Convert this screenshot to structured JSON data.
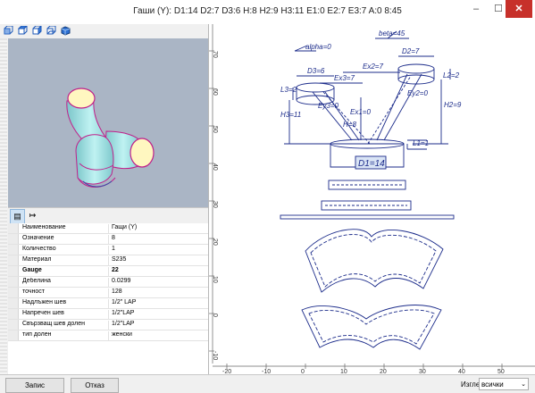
{
  "window": {
    "title": "Гаши (Y): D1:14 D2:7 D3:6 H:8 H2:9 H3:11 E1:0 E2:7 E3:7 A:0 8:45",
    "minimize_glyph": "–",
    "maximize_glyph": "☐",
    "close_glyph": "✕"
  },
  "view_toolbar": {
    "icons": [
      "view-front-icon",
      "view-top-icon",
      "view-side-icon",
      "view-back-icon",
      "view-3d-icon"
    ]
  },
  "colors": {
    "model_body": "#a4e6e8",
    "model_edge": "#c0208a",
    "model_opening": "#fff7c0",
    "drawing_line": "#1b2b8a",
    "ruler_text": "#333333"
  },
  "properties_tabs": [
    "properties-tab",
    "dimensions-tab"
  ],
  "properties": [
    {
      "key": "Наименование",
      "value": "Гащи (Y)",
      "bold": false
    },
    {
      "key": "Означение",
      "value": "8",
      "bold": false
    },
    {
      "key": "Количество",
      "value": "1",
      "bold": false
    },
    {
      "key": "Материал",
      "value": "S235",
      "bold": false
    },
    {
      "key": "Gauge",
      "value": "22",
      "bold": true
    },
    {
      "key": "Дебелина",
      "value": "0.0299",
      "bold": false
    },
    {
      "key": "точност",
      "value": "128",
      "bold": false
    },
    {
      "key": "Надлъжен шев",
      "value": "1/2\" LAP",
      "bold": false
    },
    {
      "key": "Напречен шев",
      "value": "1/2\"LAP",
      "bold": false
    },
    {
      "key": "Свързващ шев долен",
      "value": "1/2\"LAP",
      "bold": false
    },
    {
      "key": "тип долен",
      "value": "женски",
      "bold": false
    }
  ],
  "drawing": {
    "dims": {
      "alpha": "alpha=0",
      "beta": "beta=45",
      "d2": "D2=7",
      "d3": "D3=6",
      "ex2": "Ex2=7",
      "ex3": "Ex3=7",
      "l2": "L2=2",
      "l3": "L3=2",
      "ey2": "Ey2=0",
      "ey3": "Ey3=0",
      "ex1": "Ex1=0",
      "h2": "H2=9",
      "h3": "H3=11",
      "h": "H=8",
      "l1": "L1=1",
      "d1": "D1=14"
    },
    "x_ticks": [
      "-20",
      "-10",
      "0",
      "10",
      "20",
      "30",
      "40",
      "50"
    ],
    "y_ticks": [
      "70",
      "60",
      "50",
      "40",
      "30",
      "20",
      "10",
      "0",
      "-10"
    ]
  },
  "footer": {
    "save_label": "Запис",
    "cancel_label": "Отказ",
    "view_label": "Изглед:",
    "view_value": "всички",
    "view_chevron": "⌄"
  }
}
